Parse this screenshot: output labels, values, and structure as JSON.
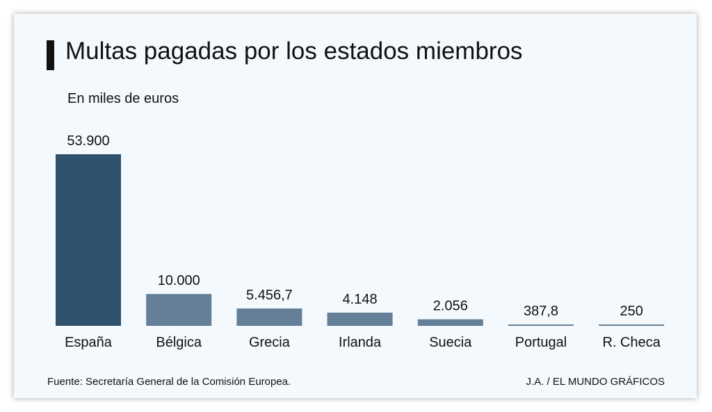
{
  "chart_data": {
    "type": "bar",
    "title": "Multas pagadas por los estados miembros",
    "subtitle": "En miles de euros",
    "categories": [
      "España",
      "Bélgica",
      "Grecia",
      "Irlanda",
      "Suecia",
      "Portugal",
      "R. Checa"
    ],
    "values": [
      53900,
      10000,
      5456.7,
      4148,
      2056,
      387.8,
      250
    ],
    "value_labels": [
      "53.900",
      "10.000",
      "5.456,7",
      "4.148",
      "2.056",
      "387,8",
      "250"
    ],
    "xlabel": "",
    "ylabel": "",
    "ylim": [
      0,
      53900
    ],
    "grid": false,
    "legend": "none",
    "colors": {
      "highlight": "#2e526d",
      "bar": "#647f97",
      "text": "#111111",
      "background": "#f3f9fc"
    }
  },
  "footer": {
    "source": "Fuente: Secretaría General de la Comisión Europea.",
    "credit": "J.A. / EL MUNDO GRÁFICOS"
  }
}
